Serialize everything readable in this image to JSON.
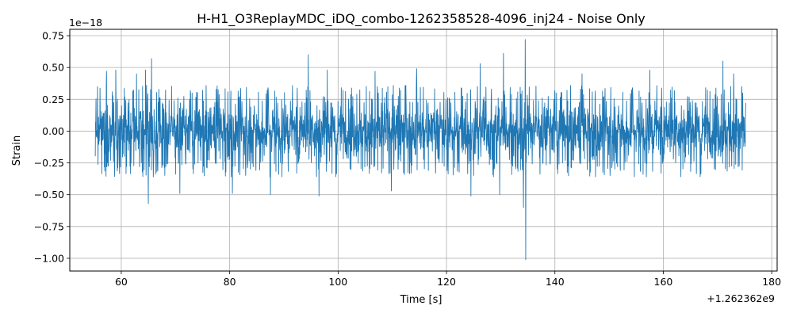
{
  "chart_data": {
    "type": "line",
    "title": "H-H1_O3ReplayMDC_iDQ_combo-1262358528-4096_inj24 - Noise Only",
    "xlabel": "Time [s]",
    "ylabel": "Strain",
    "x_offset_label": "+1.262362e9",
    "y_scale_label": "1e−18",
    "xlim": [
      50.5,
      181
    ],
    "ylim": [
      -1.1,
      0.8
    ],
    "x_ticks": [
      60,
      80,
      100,
      120,
      140,
      160,
      180
    ],
    "x_tick_labels": [
      "60",
      "80",
      "100",
      "120",
      "140",
      "160",
      "180"
    ],
    "y_ticks": [
      -1.0,
      -0.75,
      -0.5,
      -0.25,
      0.0,
      0.25,
      0.5,
      0.75
    ],
    "y_tick_labels": [
      "−1.00",
      "−0.75",
      "−0.50",
      "−0.25",
      "0.00",
      "0.25",
      "0.50",
      "0.75"
    ],
    "grid": true,
    "line_color": "#1f77b4",
    "series": [
      {
        "x_start": 55.2,
        "x_end": 175.2,
        "typical_amplitude": 0.2,
        "notable_peaks": [
          {
            "x": 57.3,
            "y": 0.47
          },
          {
            "x": 59.0,
            "y": 0.48
          },
          {
            "x": 62.8,
            "y": 0.45
          },
          {
            "x": 64.5,
            "y": 0.48
          },
          {
            "x": 65.0,
            "y": -0.57
          },
          {
            "x": 65.6,
            "y": 0.57
          },
          {
            "x": 70.8,
            "y": -0.49
          },
          {
            "x": 80.5,
            "y": -0.49
          },
          {
            "x": 87.5,
            "y": -0.5
          },
          {
            "x": 94.5,
            "y": 0.6
          },
          {
            "x": 96.5,
            "y": -0.51
          },
          {
            "x": 98.0,
            "y": 0.48
          },
          {
            "x": 106.8,
            "y": 0.47
          },
          {
            "x": 109.8,
            "y": -0.47
          },
          {
            "x": 114.5,
            "y": 0.49
          },
          {
            "x": 124.5,
            "y": -0.51
          },
          {
            "x": 126.2,
            "y": 0.53
          },
          {
            "x": 129.8,
            "y": -0.5
          },
          {
            "x": 130.5,
            "y": 0.61
          },
          {
            "x": 134.5,
            "y": 0.72
          },
          {
            "x": 134.6,
            "y": -1.01
          },
          {
            "x": 134.2,
            "y": -0.6
          },
          {
            "x": 145.0,
            "y": 0.45
          },
          {
            "x": 157.5,
            "y": 0.48
          },
          {
            "x": 171.0,
            "y": 0.55
          },
          {
            "x": 173.0,
            "y": 0.45
          }
        ]
      }
    ]
  }
}
